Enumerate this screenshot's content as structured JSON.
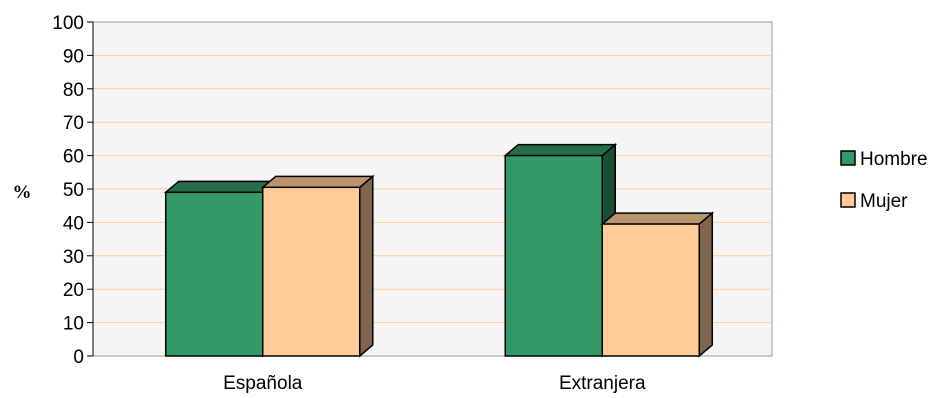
{
  "chart_data": {
    "type": "bar",
    "ylabel": "%",
    "xlabel": "",
    "title": "",
    "ylim": [
      0,
      100
    ],
    "yticks": [
      0,
      10,
      20,
      30,
      40,
      50,
      60,
      70,
      80,
      90,
      100
    ],
    "categories": [
      "Española",
      "Extranjera"
    ],
    "series": [
      {
        "name": "Hombre",
        "values": [
          49,
          60
        ],
        "color": "#339966"
      },
      {
        "name": "Mujer",
        "values": [
          50.5,
          39.5
        ],
        "color": "#ffcc99"
      }
    ],
    "grid": true,
    "grid_color": "#ffcc99",
    "plot_background": "#f5f5f5",
    "legend_position": "right",
    "style": "3d-bar"
  }
}
